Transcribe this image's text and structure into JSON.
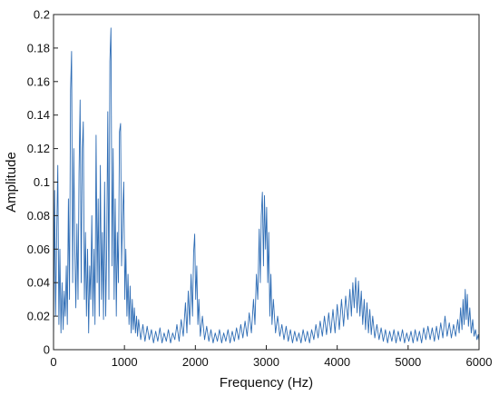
{
  "chart_data": {
    "type": "line",
    "title": "",
    "xlabel": "Frequency (Hz)",
    "ylabel": "Amplitude",
    "xlim": [
      0,
      6000
    ],
    "ylim": [
      0,
      0.2
    ],
    "grid": false,
    "legend": "none",
    "x_ticks": [
      0,
      1000,
      2000,
      3000,
      4000,
      5000,
      6000
    ],
    "x_tick_labels": [
      "0",
      "1000",
      "2000",
      "3000",
      "4000",
      "5000",
      "6000"
    ],
    "y_ticks": [
      0,
      0.02,
      0.04,
      0.06,
      0.08,
      0.1,
      0.12,
      0.14,
      0.16,
      0.18,
      0.2
    ],
    "y_tick_labels": [
      "0",
      "0.02",
      "0.04",
      "0.06",
      "0.08",
      "0.1",
      "0.12",
      "0.14",
      "0.16",
      "0.18",
      "0.2"
    ],
    "series": [
      {
        "color": "#2f6db5",
        "points": [
          [
            0,
            0.005
          ],
          [
            15,
            0.095
          ],
          [
            30,
            0.02
          ],
          [
            45,
            0.07
          ],
          [
            60,
            0.11
          ],
          [
            75,
            0.015
          ],
          [
            90,
            0.06
          ],
          [
            105,
            0.01
          ],
          [
            120,
            0.04
          ],
          [
            135,
            0.012
          ],
          [
            150,
            0.035
          ],
          [
            165,
            0.02
          ],
          [
            180,
            0.05
          ],
          [
            195,
            0.015
          ],
          [
            210,
            0.09
          ],
          [
            225,
            0.03
          ],
          [
            240,
            0.155
          ],
          [
            255,
            0.178
          ],
          [
            270,
            0.04
          ],
          [
            285,
            0.12
          ],
          [
            300,
            0.06
          ],
          [
            315,
            0.025
          ],
          [
            330,
            0.075
          ],
          [
            345,
            0.03
          ],
          [
            360,
            0.105
          ],
          [
            375,
            0.149
          ],
          [
            390,
            0.04
          ],
          [
            405,
            0.12
          ],
          [
            420,
            0.136
          ],
          [
            435,
            0.03
          ],
          [
            450,
            0.07
          ],
          [
            465,
            0.02
          ],
          [
            480,
            0.06
          ],
          [
            495,
            0.01
          ],
          [
            510,
            0.05
          ],
          [
            525,
            0.03
          ],
          [
            540,
            0.08
          ],
          [
            555,
            0.02
          ],
          [
            570,
            0.06
          ],
          [
            585,
            0.015
          ],
          [
            600,
            0.128
          ],
          [
            615,
            0.04
          ],
          [
            630,
            0.09
          ],
          [
            645,
            0.02
          ],
          [
            660,
            0.11
          ],
          [
            675,
            0.03
          ],
          [
            690,
            0.07
          ],
          [
            705,
            0.018
          ],
          [
            720,
            0.1
          ],
          [
            735,
            0.02
          ],
          [
            750,
            0.06
          ],
          [
            765,
            0.142
          ],
          [
            780,
            0.03
          ],
          [
            795,
            0.172
          ],
          [
            810,
            0.192
          ],
          [
            825,
            0.05
          ],
          [
            840,
            0.12
          ],
          [
            855,
            0.03
          ],
          [
            870,
            0.09
          ],
          [
            885,
            0.02
          ],
          [
            900,
            0.07
          ],
          [
            915,
            0.04
          ],
          [
            930,
            0.13
          ],
          [
            945,
            0.135
          ],
          [
            960,
            0.05
          ],
          [
            975,
            0.08
          ],
          [
            990,
            0.1
          ],
          [
            1005,
            0.03
          ],
          [
            1020,
            0.06
          ],
          [
            1035,
            0.02
          ],
          [
            1050,
            0.045
          ],
          [
            1065,
            0.015
          ],
          [
            1080,
            0.038
          ],
          [
            1095,
            0.01
          ],
          [
            1110,
            0.03
          ],
          [
            1125,
            0.012
          ],
          [
            1140,
            0.025
          ],
          [
            1155,
            0.01
          ],
          [
            1170,
            0.02
          ],
          [
            1185,
            0.008
          ],
          [
            1200,
            0.018
          ],
          [
            1230,
            0.006
          ],
          [
            1260,
            0.015
          ],
          [
            1290,
            0.005
          ],
          [
            1320,
            0.014
          ],
          [
            1350,
            0.006
          ],
          [
            1380,
            0.012
          ],
          [
            1410,
            0.004
          ],
          [
            1440,
            0.011
          ],
          [
            1470,
            0.005
          ],
          [
            1500,
            0.013
          ],
          [
            1530,
            0.004
          ],
          [
            1560,
            0.01
          ],
          [
            1590,
            0.005
          ],
          [
            1620,
            0.012
          ],
          [
            1650,
            0.004
          ],
          [
            1680,
            0.01
          ],
          [
            1710,
            0.006
          ],
          [
            1740,
            0.015
          ],
          [
            1770,
            0.005
          ],
          [
            1800,
            0.018
          ],
          [
            1830,
            0.008
          ],
          [
            1860,
            0.028
          ],
          [
            1880,
            0.01
          ],
          [
            1900,
            0.035
          ],
          [
            1920,
            0.015
          ],
          [
            1940,
            0.045
          ],
          [
            1960,
            0.02
          ],
          [
            1975,
            0.058
          ],
          [
            1990,
            0.069
          ],
          [
            2005,
            0.03
          ],
          [
            2020,
            0.05
          ],
          [
            2035,
            0.015
          ],
          [
            2050,
            0.03
          ],
          [
            2070,
            0.008
          ],
          [
            2100,
            0.02
          ],
          [
            2130,
            0.006
          ],
          [
            2160,
            0.014
          ],
          [
            2190,
            0.005
          ],
          [
            2220,
            0.012
          ],
          [
            2250,
            0.004
          ],
          [
            2280,
            0.01
          ],
          [
            2310,
            0.005
          ],
          [
            2340,
            0.012
          ],
          [
            2370,
            0.004
          ],
          [
            2400,
            0.01
          ],
          [
            2430,
            0.005
          ],
          [
            2460,
            0.012
          ],
          [
            2490,
            0.004
          ],
          [
            2520,
            0.011
          ],
          [
            2550,
            0.005
          ],
          [
            2580,
            0.013
          ],
          [
            2610,
            0.006
          ],
          [
            2640,
            0.015
          ],
          [
            2670,
            0.007
          ],
          [
            2700,
            0.017
          ],
          [
            2730,
            0.008
          ],
          [
            2760,
            0.022
          ],
          [
            2790,
            0.01
          ],
          [
            2820,
            0.03
          ],
          [
            2840,
            0.015
          ],
          [
            2860,
            0.045
          ],
          [
            2880,
            0.03
          ],
          [
            2900,
            0.072
          ],
          [
            2915,
            0.04
          ],
          [
            2930,
            0.08
          ],
          [
            2945,
            0.094
          ],
          [
            2960,
            0.05
          ],
          [
            2975,
            0.092
          ],
          [
            2990,
            0.06
          ],
          [
            3005,
            0.085
          ],
          [
            3020,
            0.04
          ],
          [
            3035,
            0.07
          ],
          [
            3050,
            0.02
          ],
          [
            3065,
            0.045
          ],
          [
            3080,
            0.015
          ],
          [
            3100,
            0.03
          ],
          [
            3130,
            0.01
          ],
          [
            3160,
            0.02
          ],
          [
            3190,
            0.008
          ],
          [
            3220,
            0.015
          ],
          [
            3250,
            0.006
          ],
          [
            3280,
            0.014
          ],
          [
            3310,
            0.005
          ],
          [
            3340,
            0.012
          ],
          [
            3370,
            0.004
          ],
          [
            3400,
            0.011
          ],
          [
            3430,
            0.005
          ],
          [
            3460,
            0.01
          ],
          [
            3490,
            0.004
          ],
          [
            3520,
            0.012
          ],
          [
            3550,
            0.005
          ],
          [
            3580,
            0.011
          ],
          [
            3610,
            0.004
          ],
          [
            3640,
            0.012
          ],
          [
            3670,
            0.006
          ],
          [
            3700,
            0.015
          ],
          [
            3730,
            0.007
          ],
          [
            3760,
            0.017
          ],
          [
            3790,
            0.008
          ],
          [
            3820,
            0.02
          ],
          [
            3850,
            0.009
          ],
          [
            3880,
            0.022
          ],
          [
            3910,
            0.01
          ],
          [
            3940,
            0.024
          ],
          [
            3970,
            0.01
          ],
          [
            4000,
            0.027
          ],
          [
            4030,
            0.012
          ],
          [
            4060,
            0.03
          ],
          [
            4090,
            0.014
          ],
          [
            4120,
            0.032
          ],
          [
            4150,
            0.018
          ],
          [
            4180,
            0.036
          ],
          [
            4200,
            0.02
          ],
          [
            4220,
            0.04
          ],
          [
            4240,
            0.025
          ],
          [
            4260,
            0.043
          ],
          [
            4280,
            0.022
          ],
          [
            4300,
            0.041
          ],
          [
            4320,
            0.02
          ],
          [
            4340,
            0.035
          ],
          [
            4360,
            0.015
          ],
          [
            4380,
            0.03
          ],
          [
            4400,
            0.012
          ],
          [
            4420,
            0.028
          ],
          [
            4440,
            0.01
          ],
          [
            4460,
            0.024
          ],
          [
            4480,
            0.009
          ],
          [
            4500,
            0.02
          ],
          [
            4530,
            0.007
          ],
          [
            4560,
            0.015
          ],
          [
            4590,
            0.006
          ],
          [
            4620,
            0.013
          ],
          [
            4650,
            0.005
          ],
          [
            4680,
            0.012
          ],
          [
            4710,
            0.004
          ],
          [
            4740,
            0.011
          ],
          [
            4770,
            0.005
          ],
          [
            4800,
            0.012
          ],
          [
            4830,
            0.004
          ],
          [
            4860,
            0.011
          ],
          [
            4890,
            0.005
          ],
          [
            4920,
            0.012
          ],
          [
            4950,
            0.004
          ],
          [
            4980,
            0.01
          ],
          [
            5010,
            0.005
          ],
          [
            5040,
            0.011
          ],
          [
            5070,
            0.004
          ],
          [
            5100,
            0.012
          ],
          [
            5130,
            0.005
          ],
          [
            5160,
            0.011
          ],
          [
            5190,
            0.004
          ],
          [
            5220,
            0.013
          ],
          [
            5250,
            0.006
          ],
          [
            5280,
            0.014
          ],
          [
            5310,
            0.006
          ],
          [
            5340,
            0.013
          ],
          [
            5370,
            0.005
          ],
          [
            5400,
            0.014
          ],
          [
            5430,
            0.006
          ],
          [
            5460,
            0.016
          ],
          [
            5490,
            0.007
          ],
          [
            5520,
            0.02
          ],
          [
            5550,
            0.008
          ],
          [
            5580,
            0.016
          ],
          [
            5610,
            0.007
          ],
          [
            5640,
            0.015
          ],
          [
            5670,
            0.008
          ],
          [
            5700,
            0.018
          ],
          [
            5720,
            0.01
          ],
          [
            5740,
            0.025
          ],
          [
            5760,
            0.012
          ],
          [
            5775,
            0.03
          ],
          [
            5790,
            0.015
          ],
          [
            5805,
            0.036
          ],
          [
            5820,
            0.018
          ],
          [
            5835,
            0.033
          ],
          [
            5850,
            0.014
          ],
          [
            5870,
            0.025
          ],
          [
            5890,
            0.01
          ],
          [
            5910,
            0.018
          ],
          [
            5930,
            0.008
          ],
          [
            5950,
            0.012
          ],
          [
            5970,
            0.006
          ],
          [
            5990,
            0.009
          ],
          [
            6000,
            0.005
          ]
        ]
      }
    ]
  }
}
